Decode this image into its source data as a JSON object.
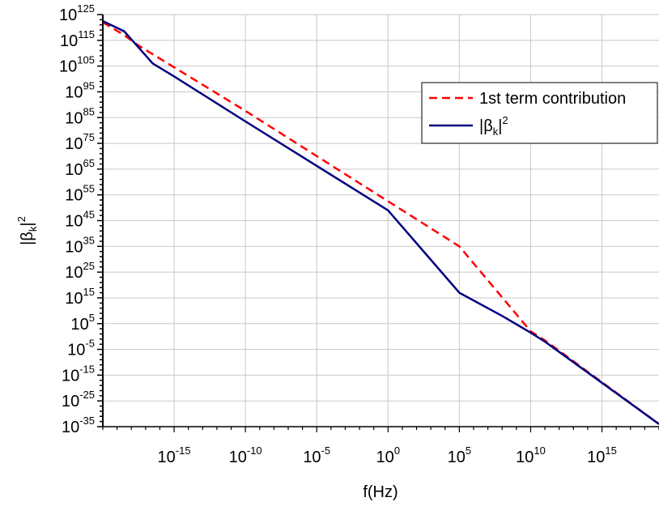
{
  "chart_data": {
    "type": "line",
    "title": "",
    "xlabel": "f(Hz)",
    "x_scale": "log",
    "y_scale": "log",
    "x_range_log10": [
      -20,
      19
    ],
    "y_range_log10": [
      -35,
      125
    ],
    "x_ticks": [
      {
        "mant": "10",
        "exp": "-15",
        "log": -15
      },
      {
        "mant": "10",
        "exp": "-10",
        "log": -10
      },
      {
        "mant": "10",
        "exp": "-5",
        "log": -5
      },
      {
        "mant": "10",
        "exp": "0",
        "log": 0
      },
      {
        "mant": "10",
        "exp": "5",
        "log": 5
      },
      {
        "mant": "10",
        "exp": "10",
        "log": 10
      },
      {
        "mant": "10",
        "exp": "15",
        "log": 15
      }
    ],
    "y_ticks": [
      {
        "mant": "10",
        "exp": "125",
        "log": 125
      },
      {
        "mant": "10",
        "exp": "115",
        "log": 115
      },
      {
        "mant": "10",
        "exp": "105",
        "log": 105
      },
      {
        "mant": "10",
        "exp": "95",
        "log": 95
      },
      {
        "mant": "10",
        "exp": "85",
        "log": 85
      },
      {
        "mant": "10",
        "exp": "75",
        "log": 75
      },
      {
        "mant": "10",
        "exp": "65",
        "log": 65
      },
      {
        "mant": "10",
        "exp": "55",
        "log": 55
      },
      {
        "mant": "10",
        "exp": "45",
        "log": 45
      },
      {
        "mant": "10",
        "exp": "35",
        "log": 35
      },
      {
        "mant": "10",
        "exp": "25",
        "log": 25
      },
      {
        "mant": "10",
        "exp": "15",
        "log": 15
      },
      {
        "mant": "10",
        "exp": "5",
        "log": 5
      },
      {
        "mant": "10",
        "exp": "-5",
        "log": -5
      },
      {
        "mant": "10",
        "exp": "-15",
        "log": -15
      },
      {
        "mant": "10",
        "exp": "-25",
        "log": -25
      },
      {
        "mant": "10",
        "exp": "-35",
        "log": -35
      }
    ],
    "grid": true,
    "legend_position": "top-right",
    "series": [
      {
        "name": "1st term contribution",
        "color": "#ff0000",
        "style": "dashed",
        "points_log10": [
          [
            -20,
            122
          ],
          [
            -18.5,
            117
          ],
          [
            -17.5,
            113
          ],
          [
            -10,
            87.6
          ],
          [
            0,
            52.5
          ],
          [
            5,
            35
          ],
          [
            10,
            2
          ],
          [
            11,
            -1.5
          ],
          [
            19,
            -34
          ]
        ]
      },
      {
        "name": "|β_k|^2",
        "color": "#000080",
        "style": "solid",
        "points_log10": [
          [
            -20,
            122.5
          ],
          [
            -18.5,
            118.5
          ],
          [
            -16.5,
            106
          ],
          [
            -15,
            101
          ],
          [
            -10,
            83.5
          ],
          [
            0,
            49
          ],
          [
            5,
            17
          ],
          [
            8,
            8
          ],
          [
            10,
            1.5
          ],
          [
            11,
            -2
          ],
          [
            12,
            -6
          ],
          [
            19,
            -34
          ]
        ]
      }
    ]
  },
  "legend": [
    {
      "text": "1st term contribution",
      "color": "#ff0000",
      "style": "dashed"
    },
    {
      "base": "|β",
      "sub": "k",
      "after": "|",
      "sup": "2",
      "color": "#000080",
      "style": "solid"
    }
  ],
  "ylabel": {
    "base": "|β",
    "sub": "k",
    "after": "|",
    "sup": "2"
  }
}
